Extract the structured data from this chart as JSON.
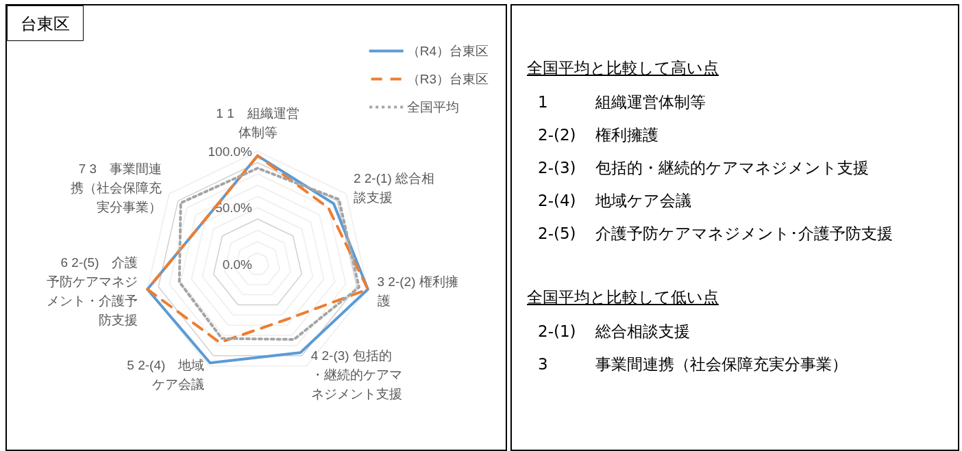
{
  "chart_data": [
    {
      "type": "radar",
      "title": "台東区",
      "categories": [
        "1 1　組織運営体制等",
        "2 2-(1) 総合相談支援",
        "3 2-(2) 権利擁護",
        "4 2-(3) 包括的・継続的ケアマネジメント支援",
        "5 2-(4)　地域ケア会議",
        "6 2-(5)　介護予防ケアマネジメント・介護予防支援",
        "7 3　事業間連携（社会保障充実分事業）"
      ],
      "series": [
        {
          "name": "（R4）台東区",
          "color": "#5b9bd5",
          "line_style": "solid",
          "values": [
            96,
            86,
            100,
            87,
            97,
            100,
            61
          ]
        },
        {
          "name": "（R3）台東区",
          "color": "#ed7d31",
          "line_style": "dashed",
          "values": [
            96,
            80,
            100,
            55,
            77,
            100,
            61
          ]
        },
        {
          "name": "全国平均",
          "color": "#a5a5a5",
          "line_style": "dotted",
          "values": [
            85,
            92,
            92,
            74,
            73,
            71,
            87
          ]
        }
      ],
      "ylim": [
        0,
        100
      ],
      "yticks": [
        {
          "value": 0,
          "label": "0.0%"
        },
        {
          "value": 50,
          "label": "50.0%"
        },
        {
          "value": 100,
          "label": "100.0%"
        }
      ],
      "grid": true,
      "legend": "top right",
      "marker": "none"
    },
    {
      "type": "other",
      "title": "全国平均と比較して高い点",
      "annotations": [
        "1 組織運営体制等",
        "2-(2) 権利擁護",
        "2-(3) 包括的・継続的ケアマネジメント支援",
        "2-(4) 地域ケア会議",
        "2-(5) 介護予防ケアマネジメント･介護予防支援"
      ]
    },
    {
      "type": "other",
      "title": "全国平均と比較して低い点",
      "annotations": [
        "2-(1) 総合相談支援",
        "3 事業間連携（社会保障充実分事業）"
      ]
    }
  ]
}
